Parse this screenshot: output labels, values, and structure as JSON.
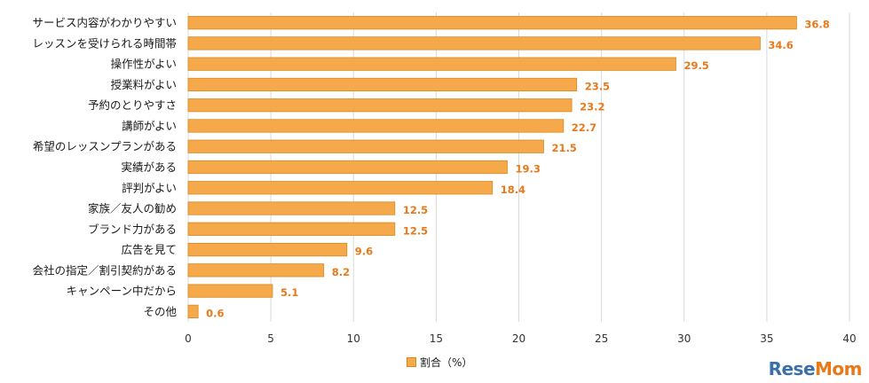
{
  "chart_data": {
    "type": "bar",
    "orientation": "horizontal",
    "categories": [
      "サービス内容がわかりやすい",
      "レッスンを受けられる時間帯",
      "操作性がよい",
      "授業料がよい",
      "予約のとりやすさ",
      "講師がよい",
      "希望のレッスンプランがある",
      "実績がある",
      "評判がよい",
      "家族／友人の勧め",
      "ブランド力がある",
      "広告を見て",
      "会社の指定／割引契約がある",
      "キャンペーン中だから",
      "その他"
    ],
    "values": [
      36.8,
      34.6,
      29.5,
      23.5,
      23.2,
      22.7,
      21.5,
      19.3,
      18.4,
      12.5,
      12.5,
      9.6,
      8.2,
      5.1,
      0.6
    ],
    "value_labels": [
      "36.8",
      "34.6",
      "29.5",
      "23.5",
      "23.2",
      "22.7",
      "21.5",
      "19.3",
      "18.4",
      "12.5",
      "12.5",
      "9.6",
      "8.2",
      "5.1",
      "0.6"
    ],
    "xlim": [
      0,
      40
    ],
    "xticks": [
      0,
      5,
      10,
      15,
      20,
      25,
      30,
      35,
      40
    ],
    "xtick_labels": [
      "0",
      "5",
      "10",
      "15",
      "20",
      "25",
      "30",
      "35",
      "40"
    ],
    "grid": "vertical",
    "legend_position": "bottom-center",
    "series": [
      {
        "name": "割合（%）",
        "values": [
          36.8,
          34.6,
          29.5,
          23.5,
          23.2,
          22.7,
          21.5,
          19.3,
          18.4,
          12.5,
          12.5,
          9.6,
          8.2,
          5.1,
          0.6
        ]
      }
    ],
    "colors": {
      "bar": "#f5a94a",
      "bar_edge": "#d8891f",
      "value_label": "#e8791a",
      "grid": "#d9d9d9"
    }
  },
  "legend": {
    "label": "割合（%）"
  },
  "watermark": {
    "text": "ReseMom",
    "colors": {
      "main": "#3a6fa8",
      "accent": "#e8791a"
    }
  }
}
